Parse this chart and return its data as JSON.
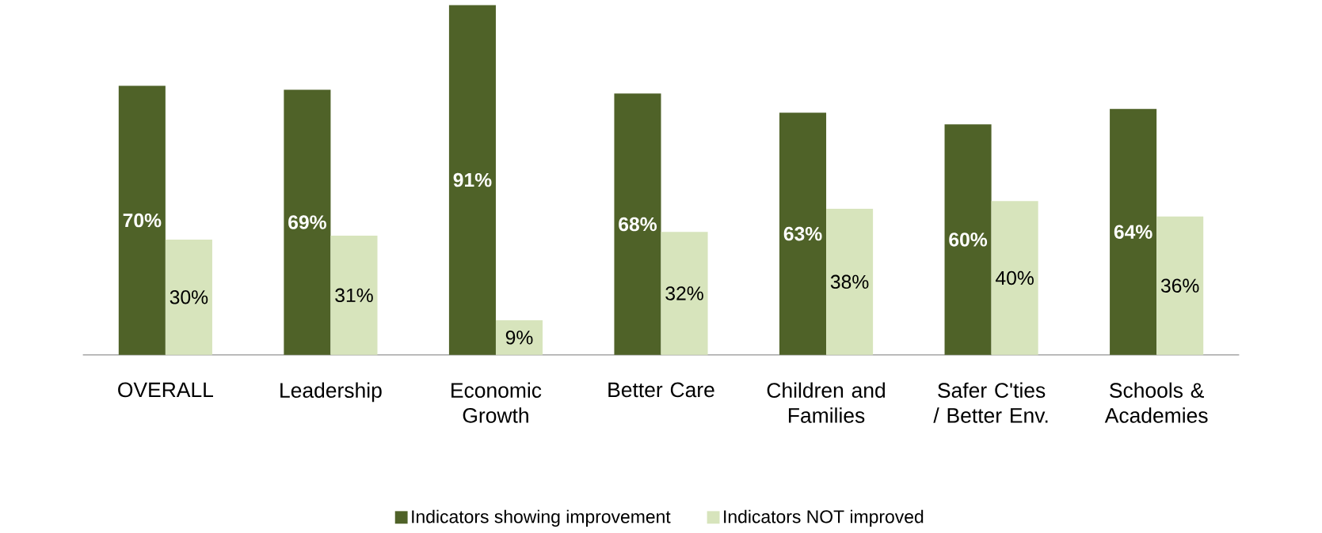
{
  "chart_data": {
    "type": "bar",
    "categories": [
      "OVERALL",
      "Leadership",
      "Economic Growth",
      "Better Care",
      "Children and Families",
      "Safer C'ties / Better Env.",
      "Schools & Academies"
    ],
    "series": [
      {
        "name": "Indicators showing improvement",
        "color": "#4f6228",
        "values": [
          70,
          69,
          91,
          68,
          63,
          60,
          64
        ],
        "value_labels": [
          "70%",
          "69%",
          "91%",
          "68%",
          "63%",
          "60%",
          "64%"
        ]
      },
      {
        "name": "Indicators NOT improved",
        "color": "#d7e4bc",
        "values": [
          30,
          31,
          9,
          32,
          38,
          40,
          36
        ],
        "value_labels": [
          "30%",
          "31%",
          "9%",
          "32%",
          "38%",
          "40%",
          "36%"
        ]
      }
    ],
    "legend": "bottom"
  }
}
